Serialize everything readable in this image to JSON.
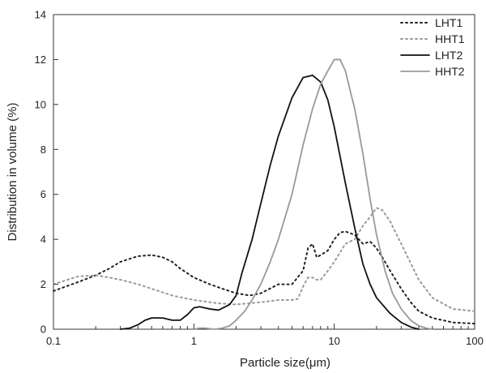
{
  "chart_data": {
    "type": "line",
    "xscale": "log",
    "xlabel": "Particle size(μm)",
    "ylabel": "Distribution in volume (%)",
    "xlim": [
      0.1,
      100
    ],
    "ylim": [
      0,
      14
    ],
    "xticks": [
      0.1,
      1,
      10,
      100
    ],
    "xtick_labels": [
      "0.1",
      "1",
      "10",
      "100"
    ],
    "yticks": [
      0,
      2,
      4,
      6,
      8,
      10,
      12,
      14
    ],
    "ytick_labels": [
      "0",
      "2",
      "4",
      "6",
      "8",
      "10",
      "12",
      "14"
    ],
    "grid": false,
    "legend_position": "top-right",
    "series": [
      {
        "name": "LHT1",
        "color": "#222222",
        "style": "dotted",
        "x": [
          0.1,
          0.15,
          0.2,
          0.25,
          0.3,
          0.4,
          0.5,
          0.6,
          0.7,
          0.8,
          1.0,
          1.3,
          1.6,
          2.0,
          2.5,
          3.0,
          4.0,
          5.0,
          6.0,
          6.5,
          7.0,
          7.5,
          8.0,
          9.0,
          10,
          11,
          12,
          14,
          16,
          18,
          20,
          22,
          25,
          30,
          35,
          40,
          50,
          70,
          100
        ],
        "y": [
          1.7,
          2.1,
          2.4,
          2.7,
          3.0,
          3.25,
          3.3,
          3.2,
          3.0,
          2.7,
          2.3,
          2.0,
          1.8,
          1.6,
          1.5,
          1.6,
          2.0,
          2.0,
          2.6,
          3.6,
          3.8,
          3.2,
          3.3,
          3.5,
          4.0,
          4.3,
          4.35,
          4.2,
          3.8,
          3.9,
          3.6,
          3.2,
          2.6,
          1.8,
          1.2,
          0.8,
          0.5,
          0.3,
          0.25
        ]
      },
      {
        "name": "HHT1",
        "color": "#999999",
        "style": "dotted",
        "x": [
          0.1,
          0.15,
          0.2,
          0.25,
          0.3,
          0.4,
          0.5,
          0.7,
          1.0,
          1.5,
          2.0,
          3.0,
          4.0,
          5.0,
          5.5,
          6.0,
          6.5,
          7.0,
          7.5,
          8.0,
          9.0,
          10,
          12,
          14,
          16,
          18,
          20,
          22,
          25,
          30,
          40,
          50,
          70,
          100
        ],
        "y": [
          2.0,
          2.35,
          2.4,
          2.3,
          2.2,
          2.0,
          1.8,
          1.5,
          1.3,
          1.15,
          1.1,
          1.2,
          1.3,
          1.3,
          1.35,
          1.9,
          2.3,
          2.3,
          2.2,
          2.2,
          2.6,
          3.0,
          3.8,
          4.0,
          4.6,
          5.0,
          5.4,
          5.3,
          4.8,
          3.8,
          2.2,
          1.4,
          0.9,
          0.8
        ]
      },
      {
        "name": "LHT2",
        "color": "#111111",
        "style": "solid",
        "x": [
          0.3,
          0.35,
          0.4,
          0.45,
          0.5,
          0.6,
          0.7,
          0.8,
          0.9,
          1.0,
          1.1,
          1.3,
          1.5,
          1.8,
          2.0,
          2.2,
          2.6,
          3.0,
          3.5,
          4.0,
          5.0,
          6.0,
          6.5,
          7.0,
          8.0,
          9.0,
          10,
          12,
          14,
          16,
          18,
          20,
          25,
          30,
          35,
          40
        ],
        "y": [
          0.0,
          0.05,
          0.2,
          0.4,
          0.5,
          0.5,
          0.4,
          0.4,
          0.65,
          0.95,
          1.0,
          0.9,
          0.85,
          1.1,
          1.5,
          2.5,
          4.0,
          5.6,
          7.3,
          8.6,
          10.3,
          11.2,
          11.25,
          11.3,
          11.0,
          10.2,
          9.0,
          6.5,
          4.5,
          2.9,
          2.0,
          1.4,
          0.7,
          0.3,
          0.1,
          0.0
        ]
      },
      {
        "name": "HHT2",
        "color": "#999999",
        "style": "solid",
        "x": [
          1.0,
          1.1,
          1.2,
          1.4,
          1.6,
          1.8,
          2.0,
          2.3,
          2.6,
          3.0,
          3.5,
          4.0,
          5.0,
          6.0,
          7.0,
          8.0,
          9.0,
          10,
          11,
          12,
          13,
          14,
          16,
          18,
          20,
          23,
          26,
          30,
          35,
          40,
          45,
          50
        ],
        "y": [
          0.0,
          0.05,
          0.05,
          0.0,
          0.05,
          0.15,
          0.4,
          0.8,
          1.3,
          2.0,
          3.0,
          4.0,
          6.0,
          8.2,
          9.8,
          10.9,
          11.5,
          12.0,
          12.0,
          11.5,
          10.6,
          9.8,
          7.8,
          5.8,
          4.2,
          2.6,
          1.6,
          0.9,
          0.4,
          0.15,
          0.05,
          0.0
        ]
      }
    ]
  }
}
